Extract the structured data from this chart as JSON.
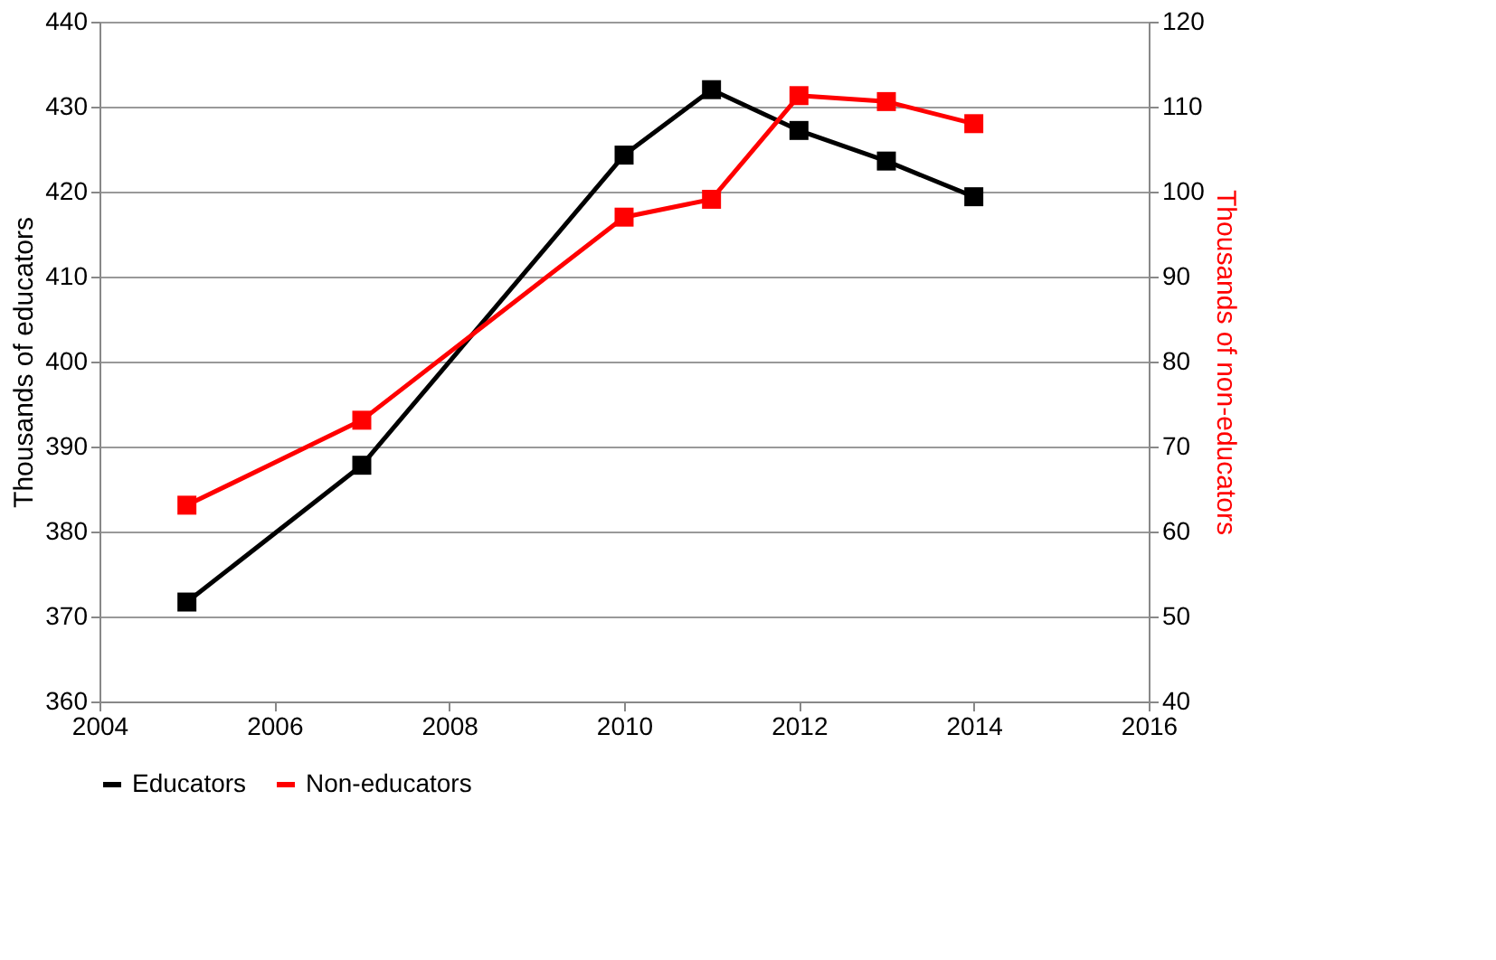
{
  "chart_data": {
    "type": "line",
    "xlim": [
      2004,
      2016
    ],
    "xticks": [
      2004,
      2006,
      2008,
      2010,
      2012,
      2014,
      2016
    ],
    "ylabel": "Thousands of educators",
    "y2label": "Thousands of non-educators",
    "ylim": [
      360,
      440
    ],
    "yticks": [
      360,
      370,
      380,
      390,
      400,
      410,
      420,
      430,
      440
    ],
    "y2lim": [
      40,
      120
    ],
    "y2ticks": [
      40,
      50,
      60,
      70,
      80,
      90,
      100,
      110,
      120
    ],
    "grid": "y",
    "legend": "bottom",
    "marker": "square",
    "line_style": "solid",
    "x": [
      2005,
      2007,
      2010,
      2011,
      2012,
      2013,
      2014
    ],
    "series": [
      {
        "name": "Educators",
        "color": "#000000",
        "values": [
          371.7,
          387.8,
          424.3,
          432.0,
          427.2,
          423.6,
          419.4
        ]
      },
      {
        "name": "Non-educators",
        "color": "#ff0000",
        "axis": "y2",
        "values": [
          63.1,
          73.1,
          97.0,
          99.1,
          111.3,
          110.6,
          108.0
        ]
      }
    ]
  }
}
